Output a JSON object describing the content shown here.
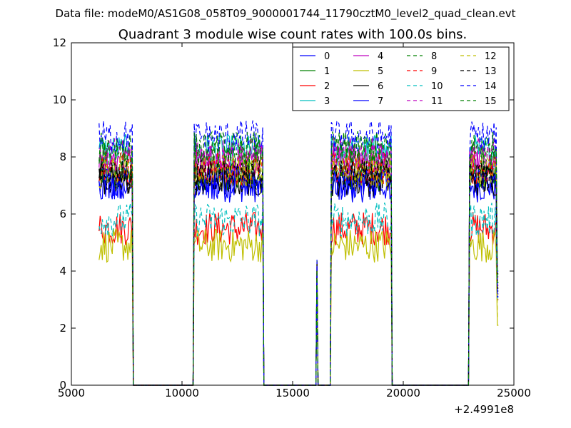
{
  "suptitle": "Data file: modeM0/AS1G08_058T09_9000001744_11790cztM0_level2_quad_clean.evt",
  "chart_data": {
    "type": "line",
    "title": "Quadrant 3 module wise count rates with 100.0s bins.",
    "xlabel": "",
    "ylabel": "",
    "xlim": [
      5000,
      25000
    ],
    "ylim": [
      0,
      12
    ],
    "x_offset_label": "+2.4991e8",
    "xticks": [
      5000,
      10000,
      15000,
      20000,
      25000
    ],
    "xtick_labels": [
      "5000",
      "10000",
      "15000",
      "20000",
      "25000"
    ],
    "yticks": [
      0,
      2,
      4,
      6,
      8,
      10,
      12
    ],
    "ytick_labels": [
      "0",
      "2",
      "4",
      "6",
      "8",
      "10",
      "12"
    ],
    "grid": false,
    "legend_position": "top-right",
    "gaps": [
      [
        7900,
        10300
      ],
      [
        13800,
        16550
      ],
      [
        19650,
        21750
      ],
      [
        22250,
        22850
      ]
    ],
    "segments": [
      [
        6250,
        7750
      ],
      [
        10550,
        13650
      ],
      [
        16750,
        19450
      ],
      [
        23000,
        24300
      ]
    ],
    "spike_point": {
      "x": 16100,
      "y": 4.4
    },
    "series": [
      {
        "name": "0",
        "color": "#0000ff",
        "dash": "solid",
        "level": 7.0,
        "end": 3.2
      },
      {
        "name": "1",
        "color": "#008000",
        "dash": "solid",
        "level": 7.4,
        "end": 3.6
      },
      {
        "name": "2",
        "color": "#ff0000",
        "dash": "solid",
        "level": 5.5,
        "end": 3.0
      },
      {
        "name": "3",
        "color": "#00bfbf",
        "dash": "solid",
        "level": 8.2,
        "end": 4.0
      },
      {
        "name": "4",
        "color": "#bf00bf",
        "dash": "solid",
        "level": 7.9,
        "end": 3.8
      },
      {
        "name": "5",
        "color": "#bfbf00",
        "dash": "solid",
        "level": 4.9,
        "end": 2.1
      },
      {
        "name": "6",
        "color": "#000000",
        "dash": "solid",
        "level": 7.2,
        "end": 3.4
      },
      {
        "name": "7",
        "color": "#0000ff",
        "dash": "solid",
        "level": 7.1,
        "end": 3.1
      },
      {
        "name": "8",
        "color": "#008000",
        "dash": "dashed",
        "level": 8.0,
        "end": 3.9
      },
      {
        "name": "9",
        "color": "#ff0000",
        "dash": "dashed",
        "level": 7.6,
        "end": 3.5
      },
      {
        "name": "10",
        "color": "#00bfbf",
        "dash": "dashed",
        "level": 5.8,
        "end": 2.9
      },
      {
        "name": "11",
        "color": "#bf00bf",
        "dash": "dashed",
        "level": 8.1,
        "end": 3.7
      },
      {
        "name": "12",
        "color": "#bfbf00",
        "dash": "dashed",
        "level": 7.5,
        "end": 2.4
      },
      {
        "name": "13",
        "color": "#000000",
        "dash": "dashed",
        "level": 7.3,
        "end": 3.3
      },
      {
        "name": "14",
        "color": "#0000ff",
        "dash": "dashed",
        "level": 8.7,
        "end": 3.1
      },
      {
        "name": "15",
        "color": "#008000",
        "dash": "dashed",
        "level": 8.3,
        "end": 3.6
      }
    ]
  }
}
